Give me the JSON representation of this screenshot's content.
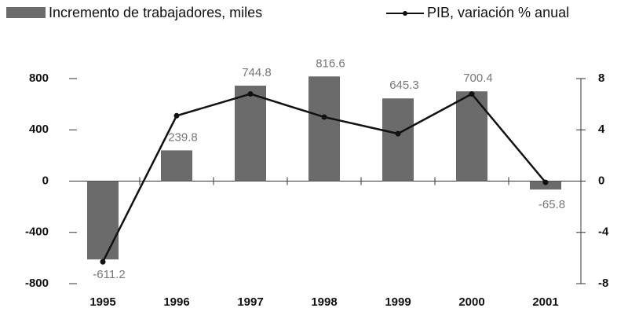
{
  "chart_data": {
    "type": "bar",
    "categories": [
      "1995",
      "1996",
      "1997",
      "1998",
      "1999",
      "2000",
      "2001"
    ],
    "series": [
      {
        "name": "Incremento de trabajadores, miles",
        "type": "bar",
        "color": "#6b6b6b",
        "values": [
          -611.2,
          239.8,
          744.8,
          816.6,
          645.3,
          700.4,
          -65.8
        ]
      },
      {
        "name": "PIB, variación % anual",
        "type": "line",
        "axis": "y2",
        "color": "#111111",
        "values": [
          -6.3,
          5.1,
          6.8,
          5.0,
          3.7,
          6.8,
          -0.1
        ]
      }
    ],
    "ylim": [
      -800,
      800
    ],
    "yticks": [
      -800,
      -400,
      0,
      400,
      800
    ],
    "y2lim": [
      -8,
      8
    ],
    "y2ticks": [
      -8,
      -4,
      0,
      4,
      8
    ],
    "grid": false
  }
}
